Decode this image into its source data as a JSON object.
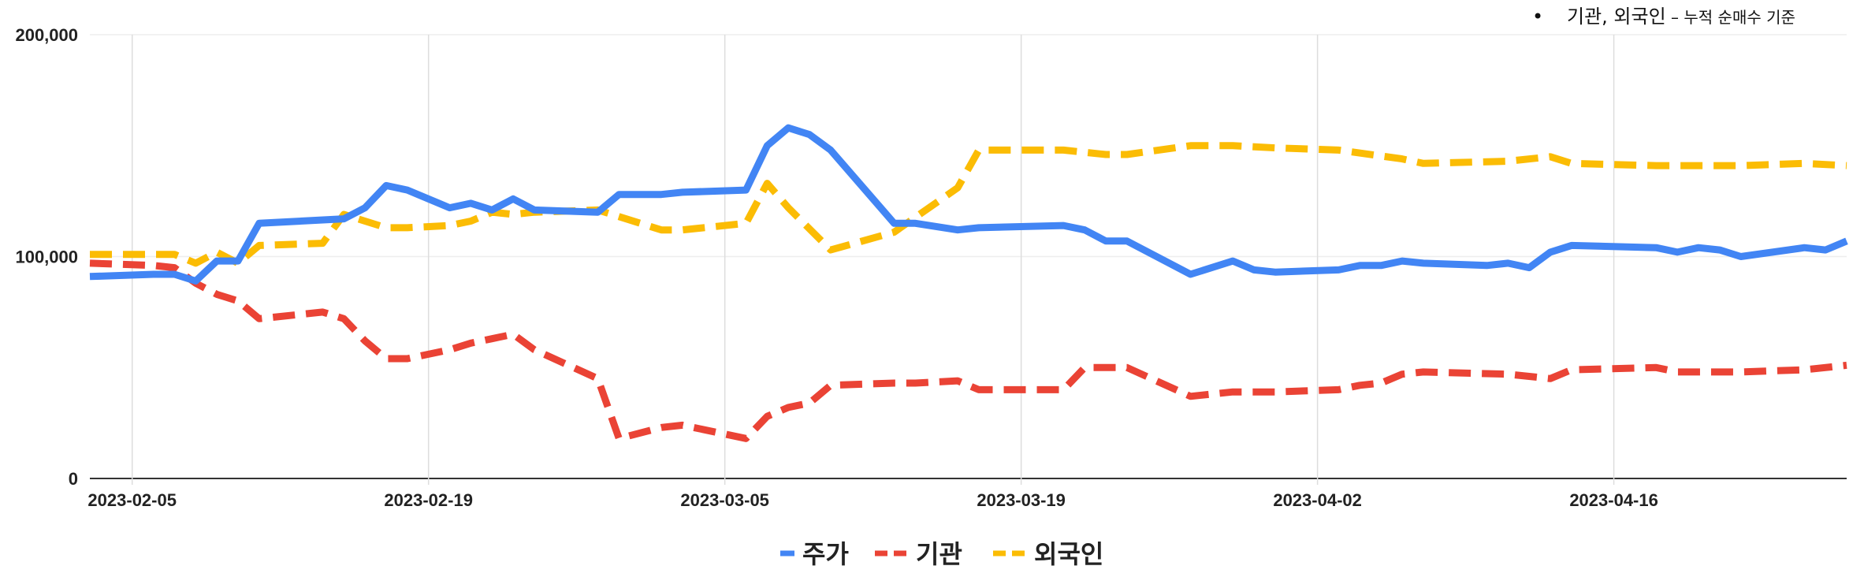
{
  "chart_data": {
    "type": "line",
    "title": "",
    "note": {
      "bullet": "•",
      "main": "기관, 외국인",
      "dash": " – ",
      "sub": "누적 순매수 기준"
    },
    "x_tick_labels": [
      "2023-02-05",
      "2023-02-19",
      "2023-03-05",
      "2023-03-19",
      "2023-04-02",
      "2023-04-16"
    ],
    "y_tick_labels": [
      "0",
      "100,000",
      "200,000"
    ],
    "ylim": [
      0,
      200000
    ],
    "y_ticks": [
      0,
      100000,
      200000
    ],
    "grid": {
      "vertical": true,
      "horizontal": true
    },
    "legend_position": "bottom",
    "series": [
      {
        "name": "주가",
        "color": "#4285F4",
        "style": "solid",
        "points": [
          [
            "2023-02-03",
            91000
          ],
          [
            "2023-02-06",
            92000
          ],
          [
            "2023-02-07",
            92000
          ],
          [
            "2023-02-08",
            89000
          ],
          [
            "2023-02-09",
            98000
          ],
          [
            "2023-02-10",
            98000
          ],
          [
            "2023-02-11",
            115000
          ],
          [
            "2023-02-15",
            117000
          ],
          [
            "2023-02-16",
            122000
          ],
          [
            "2023-02-17",
            132000
          ],
          [
            "2023-02-18",
            130000
          ],
          [
            "2023-02-20",
            122000
          ],
          [
            "2023-02-21",
            124000
          ],
          [
            "2023-02-22",
            121000
          ],
          [
            "2023-02-23",
            126000
          ],
          [
            "2023-02-24",
            121000
          ],
          [
            "2023-02-27",
            120000
          ],
          [
            "2023-02-28",
            128000
          ],
          [
            "2023-03-02",
            128000
          ],
          [
            "2023-03-03",
            129000
          ],
          [
            "2023-03-06",
            130000
          ],
          [
            "2023-03-07",
            150000
          ],
          [
            "2023-03-08",
            158000
          ],
          [
            "2023-03-09",
            155000
          ],
          [
            "2023-03-10",
            148000
          ],
          [
            "2023-03-13",
            115000
          ],
          [
            "2023-03-14",
            115000
          ],
          [
            "2023-03-16",
            112000
          ],
          [
            "2023-03-17",
            113000
          ],
          [
            "2023-03-21",
            114000
          ],
          [
            "2023-03-22",
            112000
          ],
          [
            "2023-03-23",
            107000
          ],
          [
            "2023-03-24",
            107000
          ],
          [
            "2023-03-27",
            92000
          ],
          [
            "2023-03-29",
            98000
          ],
          [
            "2023-03-30",
            94000
          ],
          [
            "2023-03-31",
            93000
          ],
          [
            "2023-04-03",
            94000
          ],
          [
            "2023-04-04",
            96000
          ],
          [
            "2023-04-05",
            96000
          ],
          [
            "2023-04-06",
            98000
          ],
          [
            "2023-04-07",
            97000
          ],
          [
            "2023-04-10",
            96000
          ],
          [
            "2023-04-11",
            97000
          ],
          [
            "2023-04-12",
            95000
          ],
          [
            "2023-04-13",
            102000
          ],
          [
            "2023-04-14",
            105000
          ],
          [
            "2023-04-18",
            104000
          ],
          [
            "2023-04-19",
            102000
          ],
          [
            "2023-04-20",
            104000
          ],
          [
            "2023-04-21",
            103000
          ],
          [
            "2023-04-22",
            100000
          ],
          [
            "2023-04-25",
            104000
          ],
          [
            "2023-04-26",
            103000
          ],
          [
            "2023-04-27",
            107000
          ]
        ]
      },
      {
        "name": "기관",
        "color": "#EA4335",
        "style": "dashed",
        "points": [
          [
            "2023-02-03",
            97000
          ],
          [
            "2023-02-06",
            96000
          ],
          [
            "2023-02-07",
            95000
          ],
          [
            "2023-02-08",
            88000
          ],
          [
            "2023-02-09",
            83000
          ],
          [
            "2023-02-10",
            80000
          ],
          [
            "2023-02-11",
            72000
          ],
          [
            "2023-02-14",
            75000
          ],
          [
            "2023-02-15",
            72000
          ],
          [
            "2023-02-16",
            62000
          ],
          [
            "2023-02-17",
            54000
          ],
          [
            "2023-02-18",
            54000
          ],
          [
            "2023-02-20",
            58000
          ],
          [
            "2023-02-21",
            61000
          ],
          [
            "2023-02-22",
            63000
          ],
          [
            "2023-02-23",
            65000
          ],
          [
            "2023-02-24",
            58000
          ],
          [
            "2023-02-27",
            45000
          ],
          [
            "2023-02-28",
            18000
          ],
          [
            "2023-03-02",
            23000
          ],
          [
            "2023-03-03",
            24000
          ],
          [
            "2023-03-06",
            18000
          ],
          [
            "2023-03-07",
            28000
          ],
          [
            "2023-03-08",
            32000
          ],
          [
            "2023-03-09",
            34000
          ],
          [
            "2023-03-10",
            42000
          ],
          [
            "2023-03-13",
            43000
          ],
          [
            "2023-03-14",
            43000
          ],
          [
            "2023-03-16",
            44000
          ],
          [
            "2023-03-17",
            40000
          ],
          [
            "2023-03-21",
            40000
          ],
          [
            "2023-03-22",
            50000
          ],
          [
            "2023-03-23",
            50000
          ],
          [
            "2023-03-24",
            50000
          ],
          [
            "2023-03-27",
            37000
          ],
          [
            "2023-03-29",
            39000
          ],
          [
            "2023-03-31",
            39000
          ],
          [
            "2023-04-03",
            40000
          ],
          [
            "2023-04-04",
            42000
          ],
          [
            "2023-04-05",
            43000
          ],
          [
            "2023-04-06",
            47000
          ],
          [
            "2023-04-07",
            48000
          ],
          [
            "2023-04-11",
            47000
          ],
          [
            "2023-04-13",
            45000
          ],
          [
            "2023-04-14",
            49000
          ],
          [
            "2023-04-18",
            50000
          ],
          [
            "2023-04-19",
            48000
          ],
          [
            "2023-04-22",
            48000
          ],
          [
            "2023-04-25",
            49000
          ],
          [
            "2023-04-27",
            51000
          ]
        ]
      },
      {
        "name": "외국인",
        "color": "#FBBC04",
        "style": "dashed",
        "points": [
          [
            "2023-02-03",
            101000
          ],
          [
            "2023-02-06",
            101000
          ],
          [
            "2023-02-07",
            101000
          ],
          [
            "2023-02-08",
            97000
          ],
          [
            "2023-02-09",
            102000
          ],
          [
            "2023-02-10",
            97000
          ],
          [
            "2023-02-11",
            105000
          ],
          [
            "2023-02-14",
            106000
          ],
          [
            "2023-02-15",
            119000
          ],
          [
            "2023-02-16",
            116000
          ],
          [
            "2023-02-17",
            113000
          ],
          [
            "2023-02-18",
            113000
          ],
          [
            "2023-02-20",
            114000
          ],
          [
            "2023-02-21",
            116000
          ],
          [
            "2023-02-22",
            120000
          ],
          [
            "2023-02-23",
            119000
          ],
          [
            "2023-02-24",
            120000
          ],
          [
            "2023-02-27",
            121000
          ],
          [
            "2023-02-28",
            118000
          ],
          [
            "2023-03-02",
            112000
          ],
          [
            "2023-03-03",
            112000
          ],
          [
            "2023-03-06",
            115000
          ],
          [
            "2023-03-07",
            133000
          ],
          [
            "2023-03-08",
            122000
          ],
          [
            "2023-03-10",
            103000
          ],
          [
            "2023-03-13",
            111000
          ],
          [
            "2023-03-16",
            131000
          ],
          [
            "2023-03-17",
            148000
          ],
          [
            "2023-03-21",
            148000
          ],
          [
            "2023-03-23",
            146000
          ],
          [
            "2023-03-24",
            146000
          ],
          [
            "2023-03-27",
            150000
          ],
          [
            "2023-03-29",
            150000
          ],
          [
            "2023-03-31",
            149000
          ],
          [
            "2023-04-03",
            148000
          ],
          [
            "2023-04-06",
            144000
          ],
          [
            "2023-04-07",
            142000
          ],
          [
            "2023-04-11",
            143000
          ],
          [
            "2023-04-13",
            145000
          ],
          [
            "2023-04-14",
            142000
          ],
          [
            "2023-04-18",
            141000
          ],
          [
            "2023-04-20",
            141000
          ],
          [
            "2023-04-22",
            141000
          ],
          [
            "2023-04-25",
            142000
          ],
          [
            "2023-04-27",
            141000
          ]
        ]
      }
    ]
  }
}
